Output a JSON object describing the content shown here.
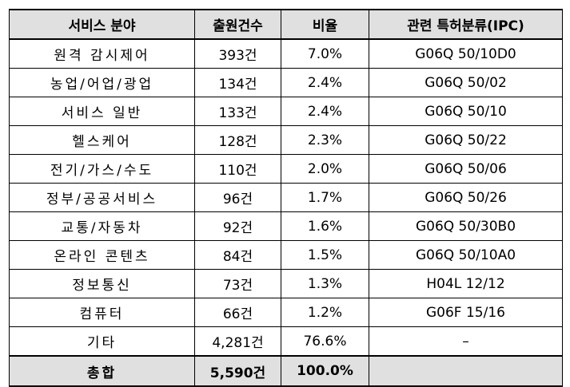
{
  "table": {
    "headers": [
      "서비스 분야",
      "출원건수",
      "비율",
      "관련 특허분류(IPC)"
    ],
    "rows": [
      [
        "원격 감시제어",
        "393건",
        "7.0%",
        "G06Q 50/10D0"
      ],
      [
        "농업/어업/광업",
        "134건",
        "2.4%",
        "G06Q 50/02"
      ],
      [
        "서비스 일반",
        "133건",
        "2.4%",
        "G06Q 50/10"
      ],
      [
        "헬스케어",
        "128건",
        "2.3%",
        "G06Q 50/22"
      ],
      [
        "전기/가스/수도",
        "110건",
        "2.0%",
        "G06Q 50/06"
      ],
      [
        "정부/공공서비스",
        "96건",
        "1.7%",
        "G06Q 50/26"
      ],
      [
        "교통/자동차",
        "92건",
        "1.6%",
        "G06Q 50/30B0"
      ],
      [
        "온라인 콘텐츠",
        "84건",
        "1.5%",
        "G06Q 50/10A0"
      ],
      [
        "정보통신",
        "73건",
        "1.3%",
        "H04L 12/12"
      ],
      [
        "컴퓨터",
        "66건",
        "1.2%",
        "G06F 15/16"
      ],
      [
        "기타",
        "4,281건",
        "76.6%",
        "–"
      ]
    ],
    "total": [
      "총합",
      "5,590건",
      "100.0%",
      ""
    ]
  }
}
